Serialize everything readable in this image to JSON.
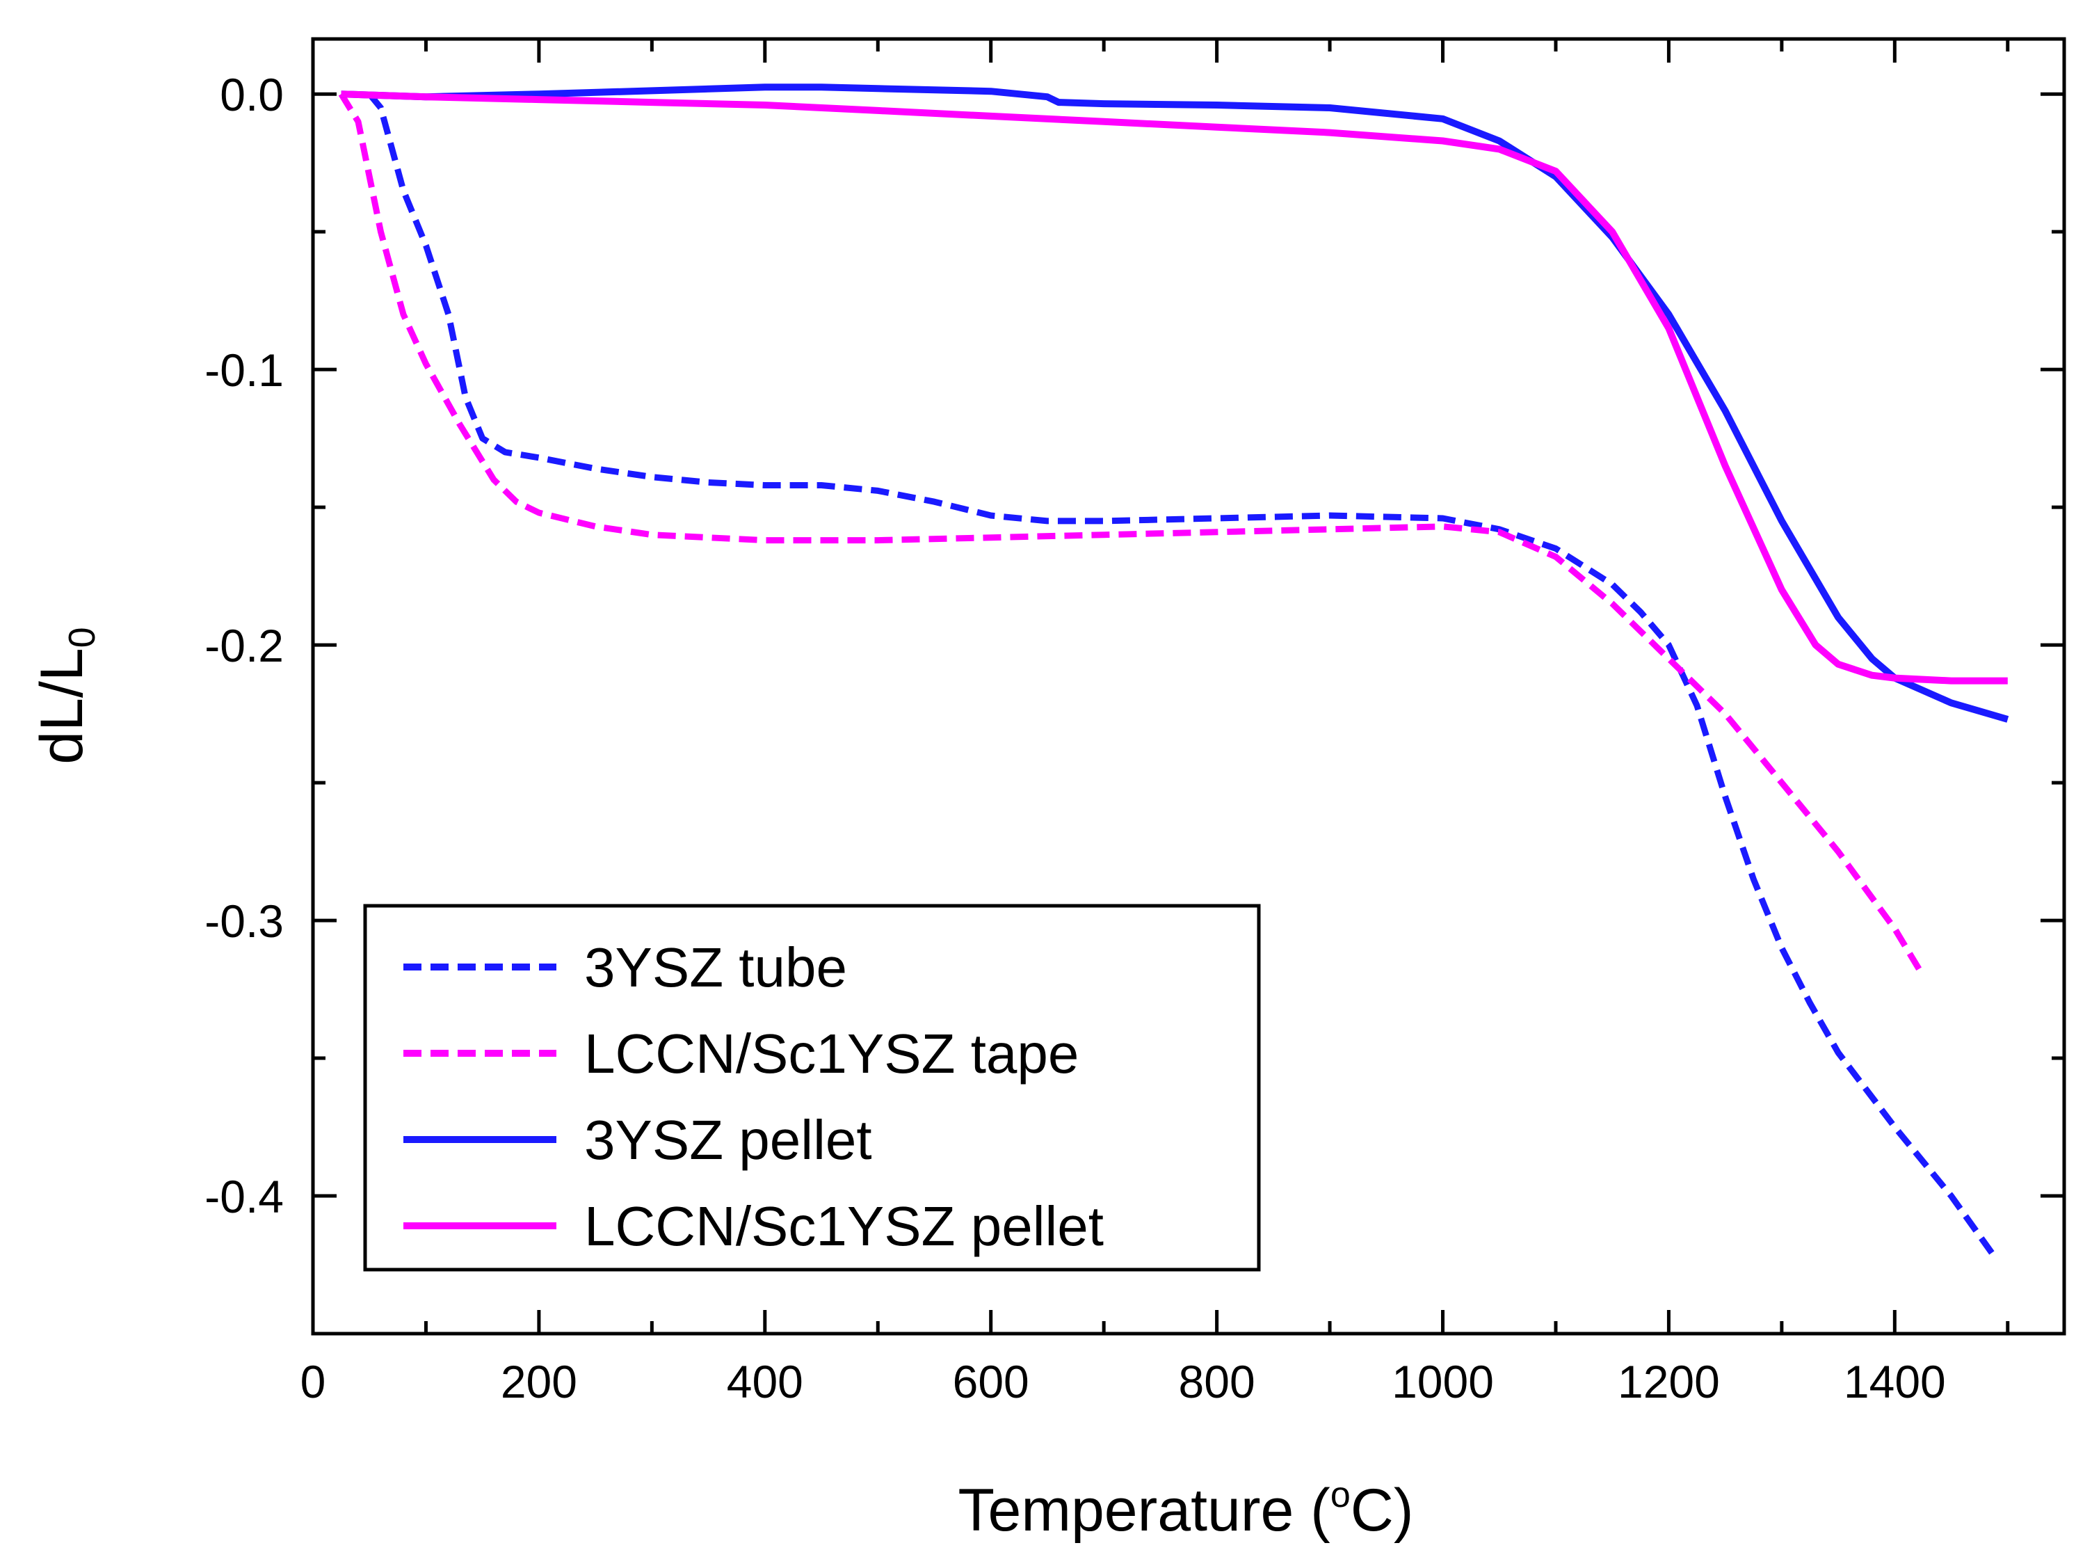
{
  "chart_data": {
    "type": "line",
    "xlabel": {
      "main": "Temperature (",
      "sup": "o",
      "tail": "C)"
    },
    "ylabel": {
      "main": "dL/L",
      "sub": "0"
    },
    "xlim": [
      0,
      1550
    ],
    "ylim": [
      -0.45,
      0.02
    ],
    "x_major_ticks": [
      0,
      200,
      400,
      600,
      800,
      1000,
      1200,
      1400
    ],
    "x_major_labels": [
      "0",
      "200",
      "400",
      "600",
      "800",
      "1000",
      "1200",
      "1400"
    ],
    "x_minor_ticks": [
      100,
      300,
      500,
      700,
      900,
      1100,
      1300,
      1500
    ],
    "y_major_ticks": [
      0.0,
      -0.1,
      -0.2,
      -0.3,
      -0.4
    ],
    "y_major_labels": [
      "0.0",
      "-0.1",
      "-0.2",
      "-0.3",
      "-0.4"
    ],
    "y_minor_ticks": [
      -0.05,
      -0.15,
      -0.25,
      -0.35
    ],
    "grid": false,
    "legend_position": "bottom-left",
    "series": [
      {
        "name": "3YSZ tube",
        "color": "#1a1aff",
        "dash": true,
        "x": [
          50,
          60,
          80,
          100,
          120,
          135,
          150,
          170,
          200,
          250,
          300,
          350,
          400,
          450,
          500,
          550,
          600,
          650,
          700,
          800,
          900,
          1000,
          1050,
          1100,
          1150,
          1175,
          1200,
          1225,
          1250,
          1275,
          1300,
          1325,
          1350,
          1400,
          1450,
          1490
        ],
        "y": [
          0.0,
          -0.005,
          -0.035,
          -0.055,
          -0.08,
          -0.11,
          -0.125,
          -0.13,
          -0.132,
          -0.136,
          -0.139,
          -0.141,
          -0.142,
          -0.142,
          -0.144,
          -0.148,
          -0.153,
          -0.155,
          -0.155,
          -0.154,
          -0.153,
          -0.154,
          -0.158,
          -0.165,
          -0.178,
          -0.188,
          -0.2,
          -0.222,
          -0.255,
          -0.285,
          -0.31,
          -0.33,
          -0.348,
          -0.375,
          -0.4,
          -0.423
        ]
      },
      {
        "name": "LCCN/Sc1YSZ tape",
        "color": "#ff00ff",
        "dash": true,
        "x": [
          25,
          40,
          60,
          80,
          100,
          130,
          160,
          180,
          200,
          250,
          300,
          350,
          400,
          450,
          500,
          600,
          700,
          800,
          900,
          1000,
          1050,
          1100,
          1150,
          1200,
          1250,
          1300,
          1350,
          1400,
          1425
        ],
        "y": [
          0.0,
          -0.01,
          -0.05,
          -0.08,
          -0.098,
          -0.12,
          -0.14,
          -0.148,
          -0.152,
          -0.157,
          -0.16,
          -0.161,
          -0.162,
          -0.162,
          -0.162,
          -0.161,
          -0.16,
          -0.159,
          -0.158,
          -0.157,
          -0.159,
          -0.168,
          -0.185,
          -0.205,
          -0.225,
          -0.25,
          -0.275,
          -0.303,
          -0.32
        ]
      },
      {
        "name": "3YSZ pellet",
        "color": "#1a1aff",
        "dash": false,
        "x": [
          25,
          100,
          200,
          300,
          400,
          450,
          500,
          600,
          650,
          660,
          700,
          800,
          900,
          1000,
          1050,
          1100,
          1150,
          1200,
          1250,
          1300,
          1350,
          1380,
          1400,
          1450,
          1500
        ],
        "y": [
          0.0,
          -0.001,
          0.0,
          0.0012,
          0.0025,
          0.0025,
          0.002,
          0.001,
          -0.001,
          -0.003,
          -0.0035,
          -0.004,
          -0.005,
          -0.009,
          -0.017,
          -0.03,
          -0.052,
          -0.08,
          -0.115,
          -0.155,
          -0.19,
          -0.205,
          -0.212,
          -0.221,
          -0.227
        ]
      },
      {
        "name": "LCCN/Sc1YSZ pellet",
        "color": "#ff00ff",
        "dash": false,
        "x": [
          25,
          100,
          200,
          300,
          400,
          500,
          600,
          700,
          800,
          900,
          1000,
          1050,
          1100,
          1150,
          1200,
          1250,
          1300,
          1330,
          1350,
          1380,
          1400,
          1450,
          1500
        ],
        "y": [
          0.0,
          -0.001,
          -0.002,
          -0.003,
          -0.004,
          -0.006,
          -0.008,
          -0.01,
          -0.012,
          -0.014,
          -0.017,
          -0.02,
          -0.028,
          -0.05,
          -0.085,
          -0.135,
          -0.18,
          -0.2,
          -0.207,
          -0.211,
          -0.212,
          -0.213,
          -0.213
        ]
      }
    ]
  }
}
